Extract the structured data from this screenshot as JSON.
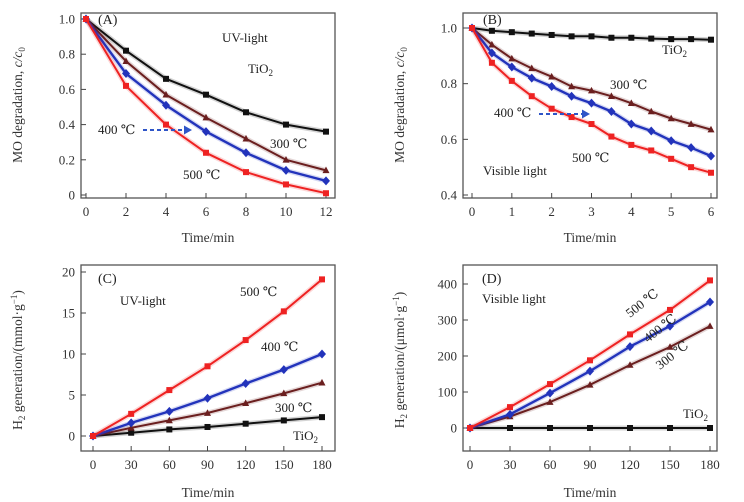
{
  "chart_data": [
    {
      "type": "line",
      "panel": "(A)",
      "title": "",
      "annotation": "UV-light",
      "xlabel": "Time/min",
      "ylabel": "MO degradation, c/c0",
      "xlim": [
        0,
        12
      ],
      "ylim": [
        0,
        1.0
      ],
      "xticks": [
        0,
        2,
        4,
        6,
        8,
        10,
        12
      ],
      "xtick_labels": [
        "0",
        "2",
        "4",
        "6",
        "8",
        "10",
        "12"
      ],
      "yticks": [
        0,
        0.2,
        0.4,
        0.6,
        0.8,
        1.0
      ],
      "ytick_labels": [
        "0",
        "0.2",
        "0.4",
        "0.6",
        "0.8",
        "1.0"
      ],
      "x": [
        0,
        2,
        4,
        6,
        8,
        10,
        12
      ],
      "series": [
        {
          "name": "TiO2",
          "label": "TiO₂",
          "color": "#111111",
          "marker": "square",
          "values": [
            1.0,
            0.82,
            0.66,
            0.57,
            0.47,
            0.4,
            0.36
          ]
        },
        {
          "name": "300 ℃",
          "label": "300 ℃",
          "color": "#6b1f1f",
          "marker": "triangle",
          "values": [
            1.0,
            0.76,
            0.57,
            0.44,
            0.32,
            0.2,
            0.14
          ]
        },
        {
          "name": "400 ℃",
          "label": "400 ℃",
          "color": "#2233bb",
          "marker": "diamond",
          "values": [
            1.0,
            0.69,
            0.51,
            0.36,
            0.24,
            0.14,
            0.08
          ]
        },
        {
          "name": "500 ℃",
          "label": "500 ℃",
          "color": "#ee2222",
          "marker": "square",
          "values": [
            1.0,
            0.62,
            0.4,
            0.24,
            0.13,
            0.06,
            0.01
          ]
        }
      ],
      "arrow_label": "400 ℃",
      "grid": false
    },
    {
      "type": "line",
      "panel": "(B)",
      "title": "",
      "annotation": "Visible light",
      "xlabel": "Time/min",
      "ylabel": "MO degradation, c/c0",
      "xlim": [
        0,
        6
      ],
      "ylim": [
        0.4,
        1.0
      ],
      "xticks": [
        0,
        1,
        2,
        3,
        4,
        5,
        6
      ],
      "xtick_labels": [
        "0",
        "1",
        "2",
        "3",
        "4",
        "5",
        "6"
      ],
      "yticks": [
        0.4,
        0.6,
        0.8,
        1.0
      ],
      "ytick_labels": [
        "0.4",
        "0.6",
        "0.8",
        "1.0"
      ],
      "x": [
        0,
        0.5,
        1,
        1.5,
        2,
        2.5,
        3,
        3.5,
        4,
        4.5,
        5,
        5.5,
        6
      ],
      "series": [
        {
          "name": "TiO2",
          "label": "TiO₂",
          "color": "#111111",
          "marker": "square",
          "values": [
            1.0,
            0.99,
            0.985,
            0.98,
            0.975,
            0.97,
            0.97,
            0.965,
            0.965,
            0.962,
            0.96,
            0.96,
            0.958
          ]
        },
        {
          "name": "300 ℃",
          "label": "300 ℃",
          "color": "#6b1f1f",
          "marker": "triangle",
          "values": [
            1.0,
            0.94,
            0.89,
            0.855,
            0.825,
            0.79,
            0.775,
            0.755,
            0.73,
            0.7,
            0.675,
            0.655,
            0.635
          ]
        },
        {
          "name": "400 ℃",
          "label": "400 ℃",
          "color": "#2233bb",
          "marker": "diamond",
          "values": [
            1.0,
            0.91,
            0.86,
            0.82,
            0.79,
            0.755,
            0.73,
            0.7,
            0.655,
            0.63,
            0.595,
            0.57,
            0.54
          ]
        },
        {
          "name": "500 ℃",
          "label": "500 ℃",
          "color": "#ee2222",
          "marker": "square",
          "values": [
            1.0,
            0.875,
            0.81,
            0.755,
            0.71,
            0.68,
            0.655,
            0.61,
            0.58,
            0.56,
            0.53,
            0.5,
            0.48
          ]
        }
      ],
      "arrow_label": "400 ℃",
      "grid": false
    },
    {
      "type": "line",
      "panel": "(C)",
      "title": "",
      "annotation": "UV-light",
      "xlabel": "Time/min",
      "ylabel": "H2 generation/(mmol·g⁻¹)",
      "xlim": [
        0,
        180
      ],
      "ylim": [
        -1.5,
        20.5
      ],
      "xticks": [
        0,
        30,
        60,
        90,
        120,
        150,
        180
      ],
      "xtick_labels": [
        "0",
        "30",
        "60",
        "90",
        "120",
        "150",
        "180"
      ],
      "yticks": [
        0,
        5,
        10,
        15,
        20
      ],
      "ytick_labels": [
        "0",
        "5",
        "10",
        "15",
        "20"
      ],
      "x": [
        0,
        30,
        60,
        90,
        120,
        150,
        180
      ],
      "series": [
        {
          "name": "TiO2",
          "label": "TiO₂",
          "color": "#111111",
          "marker": "square",
          "values": [
            0,
            0.4,
            0.8,
            1.1,
            1.5,
            1.9,
            2.3
          ]
        },
        {
          "name": "300 ℃",
          "label": "300 ℃",
          "color": "#6b1f1f",
          "marker": "triangle",
          "values": [
            0,
            1.0,
            1.9,
            2.8,
            4.0,
            5.2,
            6.5
          ]
        },
        {
          "name": "400 ℃",
          "label": "400 ℃",
          "color": "#2233bb",
          "marker": "diamond",
          "values": [
            0,
            1.6,
            3.0,
            4.6,
            6.4,
            8.1,
            10.0
          ]
        },
        {
          "name": "500 ℃",
          "label": "500 ℃",
          "color": "#ee2222",
          "marker": "square",
          "values": [
            0,
            2.7,
            5.6,
            8.5,
            11.7,
            15.2,
            19.1
          ]
        }
      ],
      "grid": false
    },
    {
      "type": "line",
      "panel": "(D)",
      "title": "",
      "annotation": "Visible light",
      "xlabel": "Time/min",
      "ylabel": "H2 generation/(μmol·g⁻¹)",
      "xlim": [
        0,
        180
      ],
      "ylim": [
        -65,
        450
      ],
      "xticks": [
        0,
        30,
        60,
        90,
        120,
        150,
        180
      ],
      "xtick_labels": [
        "0",
        "30",
        "60",
        "90",
        "120",
        "150",
        "180"
      ],
      "yticks": [
        0,
        100,
        200,
        300,
        400
      ],
      "ytick_labels": [
        "0",
        "100",
        "200",
        "300",
        "400"
      ],
      "x": [
        0,
        30,
        60,
        90,
        120,
        150,
        180
      ],
      "series": [
        {
          "name": "TiO2",
          "label": "TiO₂",
          "color": "#111111",
          "marker": "square",
          "values": [
            0,
            0,
            0,
            0,
            0,
            0,
            0
          ]
        },
        {
          "name": "300 ℃",
          "label": "300 ℃",
          "color": "#6b1f1f",
          "marker": "triangle",
          "values": [
            0,
            32,
            72,
            120,
            175,
            225,
            283
          ]
        },
        {
          "name": "400 ℃",
          "label": "400 ℃",
          "color": "#2233bb",
          "marker": "diamond",
          "values": [
            0,
            38,
            97,
            158,
            226,
            283,
            350
          ]
        },
        {
          "name": "500 ℃",
          "label": "500 ℃",
          "color": "#ee2222",
          "marker": "square",
          "values": [
            0,
            58,
            122,
            188,
            260,
            328,
            410
          ]
        }
      ],
      "grid": false
    }
  ]
}
